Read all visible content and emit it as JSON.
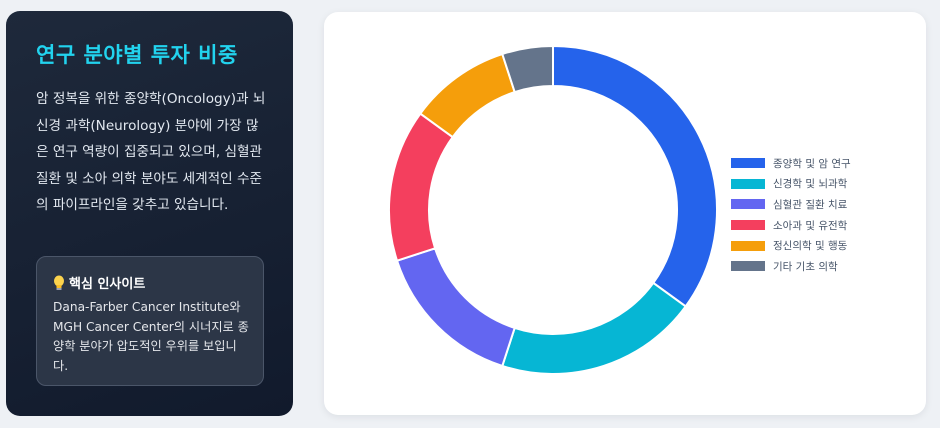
{
  "left_panel": {
    "title": "연구 분야별 투자 비중",
    "description": "암 정복을 위한 종양학(Oncology)과 뇌 신경 과학(Neurology) 분야에 가장 많은 연구 역량이 집중되고 있으며, 심혈관 질환 및 소아 의학 분야도 세계적인 수준의 파이프라인을 갖추고 있습니다.",
    "insight": {
      "icon": "lightbulb-icon",
      "title": "핵심 인사이트",
      "text": "Dana-Farber Cancer Institute와 MGH Cancer Center의 시너지로 종양학 분야가 압도적인 우위를 보입니다."
    }
  },
  "chart_data": {
    "type": "doughnut",
    "legend_position": "right",
    "categories": [
      "종양학 및 암 연구",
      "신경학 및 뇌과학",
      "심혈관 질환 치료",
      "소아과 및 유전학",
      "정신의학 및 행동",
      "기타 기초 의학"
    ],
    "values": [
      35,
      20,
      15,
      15,
      10,
      5
    ],
    "colors": [
      "#2563eb",
      "#06b6d4",
      "#6366f1",
      "#f43f5e",
      "#f59e0b",
      "#64748b"
    ]
  }
}
